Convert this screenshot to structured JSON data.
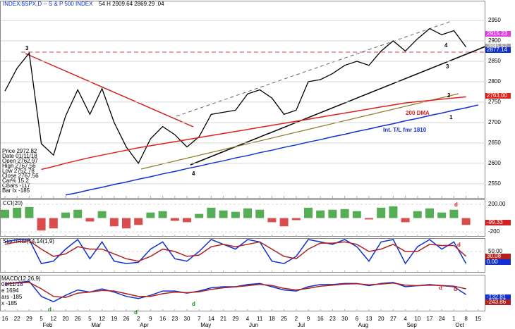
{
  "chart_data": [
    {
      "type": "line",
      "title": "INDEX:$SPX,D -- S & P 500 INDEX",
      "subtitle": "54 H 2909.64 2869.29 .04",
      "info": [
        "Price 2972.82",
        "Date 01/11/18",
        "Open 2762.97",
        "High 2767.56",
        "Low 2752.78",
        "Close 2767.56",
        "Car% 15.2",
        "CBars -117",
        "Bar Ix -185"
      ],
      "categories": [
        "16",
        "22",
        "29",
        "5",
        "12",
        "20",
        "26",
        "5",
        "12",
        "19",
        "26",
        "2",
        "9",
        "16",
        "23",
        "30",
        "7",
        "14",
        "21",
        "29",
        "4",
        "11",
        "18",
        "25",
        "2",
        "9",
        "16",
        "23",
        "30",
        "6",
        "13",
        "20",
        "27",
        "4",
        "10",
        "17",
        "24",
        "1",
        "8",
        "15"
      ],
      "months": [
        "Feb",
        "Mar",
        "Apr",
        "May",
        "Jun",
        "Jul",
        "Aug",
        "Sep",
        "Oct"
      ],
      "series": [
        {
          "color": "#000000",
          "values": [
            2777,
            2833,
            2870,
            2648,
            2620,
            2716,
            2780,
            2720,
            2783,
            2700,
            2640,
            2600,
            2660,
            2690,
            2670,
            2640,
            2665,
            2720,
            2725,
            2730,
            2770,
            2780,
            2760,
            2720,
            2730,
            2800,
            2805,
            2820,
            2840,
            2850,
            2840,
            2875,
            2900,
            2875,
            2905,
            2930,
            2915,
            2925,
            2885,
            null
          ]
        },
        {
          "name": "200 DMA",
          "color": "#e0201c",
          "values": [
            null,
            null,
            null,
            2585,
            2592,
            2600,
            2607,
            2614,
            2620,
            2626,
            2632,
            2638,
            2643,
            2648,
            2653,
            2658,
            2663,
            2668,
            2673,
            2678,
            2683,
            2688,
            2693,
            2698,
            2703,
            2708,
            2713,
            2718,
            2723,
            2728,
            2733,
            2738,
            2743,
            2748,
            2751,
            2754,
            2757,
            2760,
            2763,
            null
          ]
        },
        {
          "name": "Int. T/L fmr 1810",
          "color": "#1030d0",
          "values": [
            null,
            null,
            null,
            null,
            null,
            2522,
            2528,
            2535,
            2541,
            2548,
            2554,
            2561,
            2567,
            2574,
            2580,
            2587,
            2593,
            2600,
            2606,
            2613,
            2619,
            2626,
            2632,
            2639,
            2645,
            2652,
            2658,
            2665,
            2671,
            2678,
            2684,
            2691,
            2697,
            2704,
            2710,
            2717,
            2723,
            2730,
            2736,
            2743
          ]
        }
      ],
      "tags": [
        "2915.23",
        "2885.57",
        "2877.14",
        "2763.00"
      ],
      "annotations": [
        "3",
        "4",
        "4",
        "3",
        "2",
        "1"
      ],
      "ylim": [
        2515,
        2995
      ],
      "yticks": [
        2550,
        2600,
        2650,
        2700,
        2750,
        2800,
        2850,
        2900,
        2950
      ]
    },
    {
      "type": "bar",
      "title": "CCI(20)",
      "color_pos": "#2a9a2a",
      "color_neg": "#d02020",
      "values": [
        120,
        150,
        160,
        -180,
        -150,
        80,
        120,
        -50,
        100,
        -120,
        -150,
        -100,
        80,
        100,
        -40,
        -60,
        60,
        150,
        110,
        90,
        140,
        120,
        -60,
        -120,
        -30,
        150,
        110,
        120,
        130,
        100,
        -20,
        150,
        170,
        -60,
        100,
        140,
        80,
        120,
        -99.33,
        null
      ],
      "tags": [
        "-99.33"
      ],
      "annotations": [
        "d"
      ],
      "ylim": [
        -270,
        260
      ],
      "yticks": [
        {
          "value": 200,
          "label": "200.00"
        },
        {
          "value": -200,
          "label": "-200"
        }
      ]
    },
    {
      "type": "line",
      "title": "StochRSI(14,14(1,9)",
      "series": [
        {
          "color": "#1030d0",
          "values": [
            90,
            100,
            100,
            0,
            10,
            60,
            100,
            20,
            90,
            10,
            0,
            5,
            60,
            90,
            20,
            10,
            50,
            100,
            80,
            60,
            100,
            90,
            10,
            0,
            30,
            100,
            90,
            80,
            100,
            70,
            10,
            90,
            100,
            0,
            70,
            100,
            60,
            90,
            0,
            null
          ]
        },
        {
          "color": "#b02020",
          "values": [
            80,
            90,
            95,
            60,
            30,
            40,
            70,
            60,
            60,
            40,
            20,
            10,
            30,
            60,
            50,
            30,
            35,
            70,
            80,
            70,
            80,
            90,
            60,
            30,
            20,
            60,
            85,
            85,
            90,
            80,
            50,
            60,
            80,
            50,
            50,
            80,
            75,
            75,
            30.08,
            null
          ]
        }
      ],
      "tags": [
        "30.08",
        "0.00"
      ],
      "annotations": [
        "d"
      ],
      "ylim": [
        -38,
        103
      ],
      "yticks": [
        {
          "value": 50,
          "label": "50.00"
        }
      ]
    },
    {
      "type": "line",
      "title": "MACD(12,26,9)",
      "info": [
        "01/11/18",
        "e 1694",
        "ars -185",
        "x -185"
      ],
      "series": [
        {
          "color": "#1030d0",
          "values": [
            -40,
            -20,
            -10,
            -150,
            -200,
            -140,
            -90,
            -110,
            -80,
            -110,
            -150,
            -170,
            -140,
            -100,
            -100,
            -120,
            -100,
            -70,
            -60,
            -60,
            -40,
            -30,
            -60,
            -90,
            -100,
            -60,
            -40,
            -40,
            -30,
            -30,
            -50,
            -30,
            -20,
            -60,
            -50,
            -40,
            -50,
            -60,
            -132.81,
            null
          ]
        },
        {
          "color": "#b02020",
          "values": [
            -30,
            -25,
            -20,
            -80,
            -150,
            -160,
            -120,
            -110,
            -95,
            -100,
            -125,
            -150,
            -150,
            -125,
            -110,
            -115,
            -108,
            -85,
            -70,
            -62,
            -50,
            -38,
            -48,
            -75,
            -90,
            -75,
            -55,
            -45,
            -35,
            -32,
            -42,
            -35,
            -26,
            -45,
            -50,
            -45,
            -48,
            -55,
            -80,
            null
          ]
        }
      ],
      "tags": [
        "-132.81",
        "-243.86"
      ],
      "annotations": [
        "d",
        "d",
        "d",
        "d",
        "d"
      ],
      "ylim": [
        -290,
        45
      ]
    }
  ]
}
